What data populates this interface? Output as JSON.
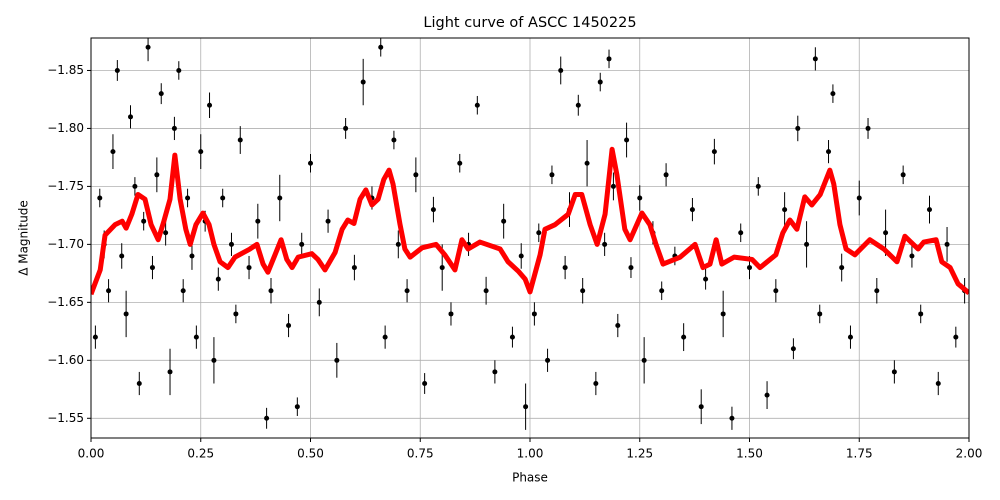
{
  "chart_data": {
    "type": "scatter",
    "title": "Light curve of ASCC 1450225",
    "x_label": "Phase",
    "y_label": "Δ Magnitude",
    "xlim": [
      0,
      2
    ],
    "ylim": [
      -1.533,
      -1.878
    ],
    "xticks": [
      {
        "value": 0,
        "label": "0.00"
      },
      0.25,
      {
        "value": 0.5,
        "label": "0.50"
      },
      0.75,
      {
        "value": 1,
        "label": "1.00"
      },
      1.25,
      {
        "value": 1.5,
        "label": "1.50"
      },
      1.75,
      {
        "value": 2,
        "label": "2.00"
      }
    ],
    "yticks": [
      {
        "value": -1.85,
        "label": "−1.85"
      },
      {
        "value": -1.8,
        "label": "−1.80"
      },
      {
        "value": -1.75,
        "label": "−1.75"
      },
      {
        "value": -1.7,
        "label": "−1.70"
      },
      {
        "value": -1.65,
        "label": "−1.65"
      },
      {
        "value": -1.6,
        "label": "−1.60"
      },
      {
        "value": -1.55,
        "label": "−1.55"
      }
    ],
    "grid": true,
    "scatter": {
      "color": "#000000",
      "x": [
        0.01,
        0.02,
        0.03,
        0.04,
        0.05,
        0.06,
        0.07,
        0.08,
        0.09,
        0.1,
        0.11,
        0.12,
        0.13,
        0.14,
        0.15,
        0.16,
        0.17,
        0.18,
        0.19,
        0.2,
        0.21,
        0.22,
        0.23,
        0.24,
        0.25,
        0.26,
        0.27,
        0.28,
        0.29,
        0.3,
        0.32,
        0.33,
        0.34,
        0.36,
        0.38,
        0.4,
        0.41,
        0.43,
        0.45,
        0.47,
        0.48,
        0.5,
        0.52,
        0.54,
        0.56,
        0.58,
        0.6,
        0.62,
        0.64,
        0.66,
        0.67,
        0.69,
        0.7,
        0.72,
        0.74,
        0.76,
        0.78,
        0.8,
        0.82,
        0.84,
        0.86,
        0.88,
        0.9,
        0.92,
        0.94,
        0.96,
        0.98,
        0.99,
        1.01,
        1.02,
        1.04,
        1.05,
        1.07,
        1.08,
        1.09,
        1.11,
        1.12,
        1.13,
        1.15,
        1.16,
        1.17,
        1.18,
        1.19,
        1.2,
        1.22,
        1.23,
        1.25,
        1.26,
        1.28,
        1.3,
        1.31,
        1.33,
        1.35,
        1.37,
        1.39,
        1.4,
        1.42,
        1.44,
        1.46,
        1.48,
        1.5,
        1.52,
        1.54,
        1.56,
        1.58,
        1.6,
        1.61,
        1.63,
        1.65,
        1.66,
        1.68,
        1.69,
        1.71,
        1.73,
        1.75,
        1.77,
        1.79,
        1.81,
        1.83,
        1.85,
        1.87,
        1.89,
        1.91,
        1.93,
        1.95,
        1.97,
        1.99
      ],
      "values": [
        -1.62,
        -1.74,
        -1.7,
        -1.66,
        -1.78,
        -1.85,
        -1.69,
        -1.64,
        -1.81,
        -1.75,
        -1.58,
        -1.72,
        -1.87,
        -1.68,
        -1.76,
        -1.83,
        -1.71,
        -1.59,
        -1.8,
        -1.85,
        -1.66,
        -1.74,
        -1.69,
        -1.62,
        -1.78,
        -1.72,
        -1.82,
        -1.6,
        -1.67,
        -1.74,
        -1.7,
        -1.64,
        -1.79,
        -1.68,
        -1.72,
        -1.55,
        -1.66,
        -1.74,
        -1.63,
        -1.56,
        -1.7,
        -1.77,
        -1.65,
        -1.72,
        -1.6,
        -1.8,
        -1.68,
        -1.84,
        -1.74,
        -1.87,
        -1.62,
        -1.79,
        -1.7,
        -1.66,
        -1.76,
        -1.58,
        -1.73,
        -1.68,
        -1.64,
        -1.77,
        -1.7,
        -1.82,
        -1.66,
        -1.59,
        -1.72,
        -1.62,
        -1.69,
        -1.56,
        -1.64,
        -1.71,
        -1.6,
        -1.76,
        -1.85,
        -1.68,
        -1.73,
        -1.82,
        -1.66,
        -1.77,
        -1.58,
        -1.84,
        -1.7,
        -1.86,
        -1.75,
        -1.63,
        -1.79,
        -1.68,
        -1.74,
        -1.6,
        -1.71,
        -1.66,
        -1.76,
        -1.69,
        -1.62,
        -1.73,
        -1.56,
        -1.67,
        -1.78,
        -1.64,
        -1.55,
        -1.71,
        -1.68,
        -1.75,
        -1.57,
        -1.66,
        -1.73,
        -1.61,
        -1.8,
        -1.7,
        -1.86,
        -1.64,
        -1.78,
        -1.83,
        -1.68,
        -1.62,
        -1.74,
        -1.8,
        -1.66,
        -1.71,
        -1.59,
        -1.76,
        -1.69,
        -1.64,
        -1.73,
        -1.58,
        -1.7,
        -1.62,
        -1.66
      ],
      "errors": [
        0.01,
        0.008,
        0.012,
        0.01,
        0.015,
        0.009,
        0.011,
        0.02,
        0.01,
        0.008,
        0.01,
        0.008,
        0.012,
        0.01,
        0.015,
        0.009,
        0.011,
        0.02,
        0.01,
        0.008,
        0.01,
        0.008,
        0.012,
        0.01,
        0.015,
        0.009,
        0.011,
        0.02,
        0.01,
        0.008,
        0.01,
        0.008,
        0.012,
        0.01,
        0.015,
        0.009,
        0.011,
        0.02,
        0.01,
        0.008,
        0.01,
        0.008,
        0.012,
        0.01,
        0.015,
        0.009,
        0.011,
        0.02,
        0.01,
        0.008,
        0.01,
        0.008,
        0.012,
        0.01,
        0.015,
        0.009,
        0.011,
        0.02,
        0.01,
        0.008,
        0.01,
        0.008,
        0.012,
        0.01,
        0.015,
        0.009,
        0.011,
        0.02,
        0.01,
        0.008,
        0.01,
        0.008,
        0.012,
        0.01,
        0.015,
        0.009,
        0.011,
        0.02,
        0.01,
        0.008,
        0.01,
        0.008,
        0.012,
        0.01,
        0.015,
        0.009,
        0.011,
        0.02,
        0.01,
        0.008,
        0.01,
        0.008,
        0.012,
        0.01,
        0.015,
        0.009,
        0.011,
        0.02,
        0.01,
        0.008,
        0.01,
        0.008,
        0.012,
        0.01,
        0.015,
        0.009,
        0.011,
        0.02,
        0.01,
        0.008,
        0.01,
        0.008,
        0.012,
        0.01,
        0.015,
        0.009,
        0.011,
        0.02,
        0.01,
        0.008,
        0.01,
        0.008,
        0.012,
        0.01,
        0.015,
        0.009,
        0.011
      ]
    },
    "line": {
      "color": "#ff0000",
      "x": [
        0.0,
        0.021,
        0.032,
        0.055,
        0.071,
        0.08,
        0.093,
        0.107,
        0.123,
        0.137,
        0.153,
        0.166,
        0.18,
        0.191,
        0.203,
        0.216,
        0.226,
        0.239,
        0.255,
        0.269,
        0.28,
        0.294,
        0.312,
        0.328,
        0.362,
        0.378,
        0.392,
        0.403,
        0.417,
        0.433,
        0.446,
        0.458,
        0.472,
        0.503,
        0.517,
        0.533,
        0.556,
        0.572,
        0.585,
        0.599,
        0.613,
        0.626,
        0.64,
        0.654,
        0.667,
        0.679,
        0.688,
        0.704,
        0.715,
        0.727,
        0.754,
        0.786,
        0.806,
        0.829,
        0.845,
        0.859,
        0.886,
        0.932,
        0.95,
        0.973,
        0.989,
        1.0,
        1.023,
        1.034,
        1.057,
        1.087,
        1.103,
        1.118,
        1.137,
        1.153,
        1.171,
        1.187,
        1.198,
        1.216,
        1.228,
        1.255,
        1.273,
        1.287,
        1.303,
        1.342,
        1.376,
        1.394,
        1.41,
        1.424,
        1.437,
        1.465,
        1.506,
        1.524,
        1.56,
        1.576,
        1.592,
        1.608,
        1.626,
        1.642,
        1.661,
        1.683,
        1.692,
        1.706,
        1.72,
        1.74,
        1.774,
        1.806,
        1.836,
        1.854,
        1.884,
        1.897,
        1.925,
        1.938,
        1.957,
        1.975,
        2.0
      ],
      "values": [
        -1.657,
        -1.678,
        -1.708,
        -1.717,
        -1.72,
        -1.714,
        -1.726,
        -1.743,
        -1.739,
        -1.717,
        -1.704,
        -1.72,
        -1.739,
        -1.777,
        -1.739,
        -1.713,
        -1.7,
        -1.717,
        -1.727,
        -1.717,
        -1.7,
        -1.685,
        -1.68,
        -1.689,
        -1.696,
        -1.7,
        -1.683,
        -1.676,
        -1.689,
        -1.704,
        -1.687,
        -1.68,
        -1.689,
        -1.692,
        -1.687,
        -1.678,
        -1.693,
        -1.713,
        -1.721,
        -1.718,
        -1.739,
        -1.747,
        -1.734,
        -1.739,
        -1.756,
        -1.764,
        -1.752,
        -1.717,
        -1.696,
        -1.689,
        -1.697,
        -1.7,
        -1.691,
        -1.678,
        -1.704,
        -1.696,
        -1.702,
        -1.696,
        -1.685,
        -1.677,
        -1.67,
        -1.659,
        -1.691,
        -1.713,
        -1.717,
        -1.726,
        -1.743,
        -1.743,
        -1.717,
        -1.7,
        -1.726,
        -1.782,
        -1.76,
        -1.713,
        -1.704,
        -1.727,
        -1.717,
        -1.7,
        -1.683,
        -1.689,
        -1.7,
        -1.68,
        -1.683,
        -1.704,
        -1.683,
        -1.689,
        -1.687,
        -1.68,
        -1.691,
        -1.71,
        -1.721,
        -1.713,
        -1.741,
        -1.734,
        -1.743,
        -1.764,
        -1.752,
        -1.717,
        -1.696,
        -1.691,
        -1.704,
        -1.696,
        -1.685,
        -1.707,
        -1.696,
        -1.702,
        -1.704,
        -1.685,
        -1.68,
        -1.666,
        -1.658
      ]
    }
  }
}
